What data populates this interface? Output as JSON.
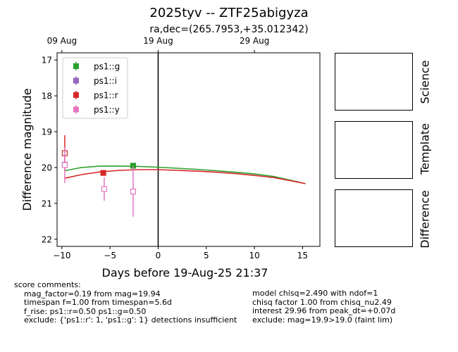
{
  "title": "2025tyv -- ZTF25abigyza",
  "subtitle": "ra,dec=(265.7953,+35.012342)",
  "cutouts": [
    "Science",
    "Template",
    "Difference"
  ],
  "comments": {
    "header": "score comments:",
    "left": [
      "mag_factor=0.19 from mag=19.94",
      "timespan f=1.00 from timespan=5.6d",
      "f_rise: ps1::r=0.50 ps1::g=0.50",
      "exclude: {'ps1::r': 1, 'ps1::g': 1} detections insufficient"
    ],
    "right": [
      "model chisq=2.490 with ndof=1",
      "chisq factor 1.00 from chisq_nu2.49",
      "interest 29.96 from peak_dt=+0.07d",
      "exclude: mag=19.9>19.0 (faint lim)"
    ]
  },
  "chart_data": {
    "type": "scatter",
    "xlabel": "Days before 19-Aug-25 21:37",
    "ylabel": "Difference magnitude",
    "xlim": [
      -10.5,
      16.8
    ],
    "ylim": [
      22.2,
      16.8
    ],
    "y_inverted": true,
    "xticks": [
      -10,
      -5,
      0,
      5,
      10,
      15
    ],
    "yticks": [
      17,
      18,
      19,
      20,
      21,
      22
    ],
    "top_axis": {
      "ticks": [
        {
          "x": -10,
          "label": "09 Aug"
        },
        {
          "x": 0,
          "label": "19 Aug"
        },
        {
          "x": 10,
          "label": "29 Aug"
        }
      ]
    },
    "vline_x": 0,
    "legend_position": "top-left",
    "legend": [
      {
        "name": "ps1::g",
        "color": "#2ca02c",
        "filled": true
      },
      {
        "name": "ps1::i",
        "color": "#9467bd",
        "filled": true
      },
      {
        "name": "ps1::r",
        "color": "#d62728",
        "filled": true
      },
      {
        "name": "ps1::y",
        "color": "#e377c2",
        "filled": true
      }
    ],
    "series": [
      {
        "name": "ps1::g",
        "color": "#2ca02c",
        "points": [
          {
            "x": -2.6,
            "y": 19.95,
            "err": 0.05,
            "filled": true
          }
        ]
      },
      {
        "name": "ps1::i",
        "color": "#9467bd",
        "points": [
          {
            "x": -9.7,
            "y": 19.92,
            "err": 0.05,
            "filled": false
          }
        ]
      },
      {
        "name": "ps1::r",
        "color": "#d62728",
        "points": [
          {
            "x": -9.7,
            "y": 19.6,
            "err": 0.5,
            "filled": false
          },
          {
            "x": -5.7,
            "y": 20.15,
            "err": 0.06,
            "filled": true
          }
        ]
      },
      {
        "name": "ps1::y",
        "color": "#e377c2",
        "points": [
          {
            "x": -9.7,
            "y": 19.93,
            "err": 0.5,
            "filled": false
          },
          {
            "x": -5.6,
            "y": 20.6,
            "err": 0.33,
            "filled": false
          },
          {
            "x": -2.6,
            "y": 20.67,
            "err": 0.7,
            "filled": false
          }
        ]
      }
    ],
    "model_curves": [
      {
        "name": "ps1::g",
        "color": "#2ca02c",
        "x": [
          -9.7,
          -8,
          -6,
          -4,
          -2,
          0,
          2,
          4,
          6,
          8,
          10,
          12,
          14,
          15.3
        ],
        "y": [
          20.09,
          20.0,
          19.96,
          19.96,
          19.97,
          19.99,
          20.02,
          20.05,
          20.09,
          20.13,
          20.18,
          20.25,
          20.37,
          20.45
        ]
      },
      {
        "name": "ps1::r",
        "color": "#d62728",
        "x": [
          -9.7,
          -8,
          -6,
          -4,
          -2,
          0,
          2,
          4,
          6,
          8,
          10,
          12,
          14,
          15.3
        ],
        "y": [
          20.3,
          20.2,
          20.12,
          20.08,
          20.06,
          20.06,
          20.08,
          20.1,
          20.13,
          20.17,
          20.22,
          20.28,
          20.38,
          20.45
        ]
      }
    ]
  }
}
